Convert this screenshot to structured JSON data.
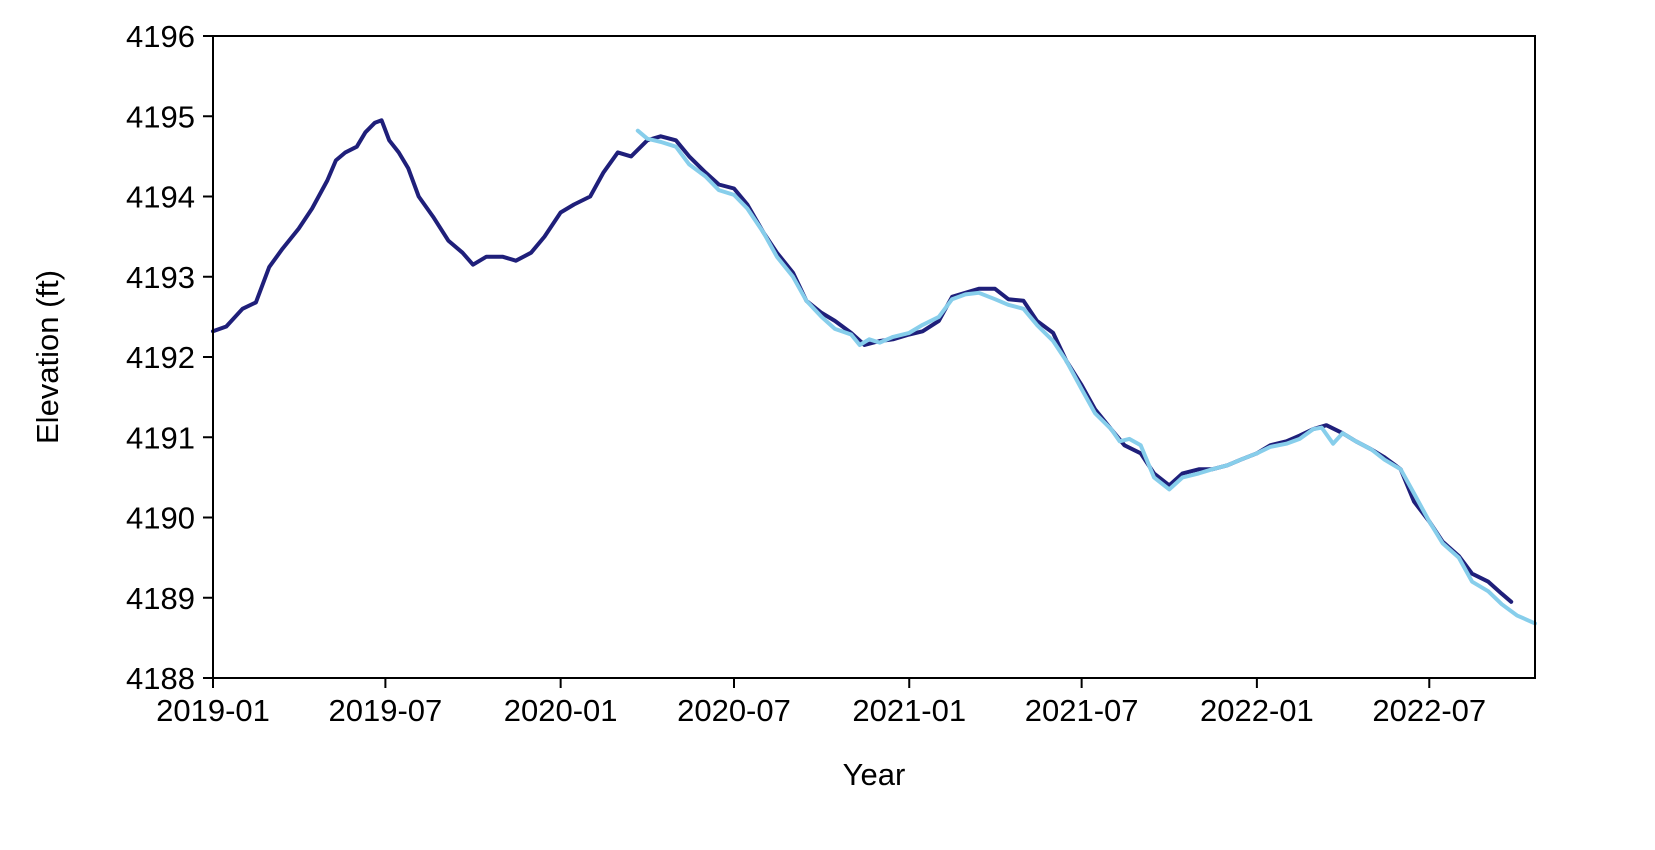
{
  "chart_data": {
    "type": "line",
    "xlabel": "Year",
    "ylabel": "Elevation (ft)",
    "x_axis_type": "date",
    "xlim": [
      "2019-01-01",
      "2022-10-20"
    ],
    "ylim": [
      4188,
      4196
    ],
    "x_ticks": [
      "2019-01",
      "2019-07",
      "2020-01",
      "2020-07",
      "2021-01",
      "2021-07",
      "2022-01",
      "2022-07"
    ],
    "y_ticks": [
      4188,
      4189,
      4190,
      4191,
      4192,
      4193,
      4194,
      4195,
      4196
    ],
    "grid": false,
    "legend": "none",
    "series": [
      {
        "color": "#1f1f7a",
        "points": [
          [
            "2019-01-01",
            4192.32
          ],
          [
            "2019-01-15",
            4192.38
          ],
          [
            "2019-02-01",
            4192.6
          ],
          [
            "2019-02-15",
            4192.68
          ],
          [
            "2019-03-01",
            4193.12
          ],
          [
            "2019-03-15",
            4193.35
          ],
          [
            "2019-04-01",
            4193.6
          ],
          [
            "2019-04-15",
            4193.85
          ],
          [
            "2019-05-01",
            4194.2
          ],
          [
            "2019-05-10",
            4194.45
          ],
          [
            "2019-05-20",
            4194.55
          ],
          [
            "2019-06-01",
            4194.62
          ],
          [
            "2019-06-10",
            4194.8
          ],
          [
            "2019-06-20",
            4194.92
          ],
          [
            "2019-06-27",
            4194.95
          ],
          [
            "2019-07-05",
            4194.7
          ],
          [
            "2019-07-15",
            4194.55
          ],
          [
            "2019-07-25",
            4194.35
          ],
          [
            "2019-08-05",
            4194.0
          ],
          [
            "2019-08-20",
            4193.75
          ],
          [
            "2019-09-05",
            4193.45
          ],
          [
            "2019-09-20",
            4193.3
          ],
          [
            "2019-10-01",
            4193.15
          ],
          [
            "2019-10-15",
            4193.25
          ],
          [
            "2019-11-01",
            4193.25
          ],
          [
            "2019-11-15",
            4193.2
          ],
          [
            "2019-12-01",
            4193.3
          ],
          [
            "2019-12-15",
            4193.5
          ],
          [
            "2020-01-01",
            4193.8
          ],
          [
            "2020-01-15",
            4193.9
          ],
          [
            "2020-02-01",
            4194.0
          ],
          [
            "2020-02-15",
            4194.3
          ],
          [
            "2020-03-01",
            4194.55
          ],
          [
            "2020-03-15",
            4194.5
          ],
          [
            "2020-04-01",
            4194.7
          ],
          [
            "2020-04-15",
            4194.75
          ],
          [
            "2020-05-01",
            4194.7
          ],
          [
            "2020-05-15",
            4194.5
          ],
          [
            "2020-06-01",
            4194.3
          ],
          [
            "2020-06-15",
            4194.15
          ],
          [
            "2020-07-01",
            4194.1
          ],
          [
            "2020-07-15",
            4193.9
          ],
          [
            "2020-08-01",
            4193.55
          ],
          [
            "2020-08-15",
            4193.3
          ],
          [
            "2020-09-01",
            4193.05
          ],
          [
            "2020-09-15",
            4192.7
          ],
          [
            "2020-10-01",
            4192.55
          ],
          [
            "2020-10-15",
            4192.45
          ],
          [
            "2020-11-01",
            4192.3
          ],
          [
            "2020-11-15",
            4192.15
          ],
          [
            "2020-12-01",
            4192.2
          ],
          [
            "2020-12-15",
            4192.22
          ],
          [
            "2021-01-01",
            4192.28
          ],
          [
            "2021-01-15",
            4192.32
          ],
          [
            "2021-02-01",
            4192.45
          ],
          [
            "2021-02-15",
            4192.75
          ],
          [
            "2021-03-01",
            4192.8
          ],
          [
            "2021-03-15",
            4192.85
          ],
          [
            "2021-04-01",
            4192.85
          ],
          [
            "2021-04-15",
            4192.72
          ],
          [
            "2021-05-01",
            4192.7
          ],
          [
            "2021-05-15",
            4192.45
          ],
          [
            "2021-06-01",
            4192.3
          ],
          [
            "2021-06-15",
            4191.95
          ],
          [
            "2021-07-01",
            4191.65
          ],
          [
            "2021-07-15",
            4191.35
          ],
          [
            "2021-08-01",
            4191.1
          ],
          [
            "2021-08-15",
            4190.9
          ],
          [
            "2021-09-01",
            4190.8
          ],
          [
            "2021-09-15",
            4190.55
          ],
          [
            "2021-10-01",
            4190.4
          ],
          [
            "2021-10-15",
            4190.55
          ],
          [
            "2021-11-01",
            4190.6
          ],
          [
            "2021-11-15",
            4190.6
          ],
          [
            "2021-12-01",
            4190.65
          ],
          [
            "2021-12-15",
            4190.72
          ],
          [
            "2022-01-01",
            4190.8
          ],
          [
            "2022-01-15",
            4190.9
          ],
          [
            "2022-02-01",
            4190.95
          ],
          [
            "2022-02-15",
            4191.02
          ],
          [
            "2022-03-01",
            4191.1
          ],
          [
            "2022-03-15",
            4191.15
          ],
          [
            "2022-04-01",
            4191.05
          ],
          [
            "2022-04-15",
            4190.95
          ],
          [
            "2022-05-01",
            4190.85
          ],
          [
            "2022-05-15",
            4190.75
          ],
          [
            "2022-06-01",
            4190.6
          ],
          [
            "2022-06-15",
            4190.2
          ],
          [
            "2022-07-01",
            4189.95
          ],
          [
            "2022-07-15",
            4189.7
          ],
          [
            "2022-08-01",
            4189.52
          ],
          [
            "2022-08-15",
            4189.3
          ],
          [
            "2022-09-01",
            4189.2
          ],
          [
            "2022-09-15",
            4189.05
          ],
          [
            "2022-09-25",
            4188.95
          ]
        ]
      },
      {
        "color": "#87ceeb",
        "points": [
          [
            "2020-03-22",
            4194.82
          ],
          [
            "2020-04-01",
            4194.72
          ],
          [
            "2020-04-15",
            4194.68
          ],
          [
            "2020-05-01",
            4194.62
          ],
          [
            "2020-05-15",
            4194.4
          ],
          [
            "2020-06-01",
            4194.25
          ],
          [
            "2020-06-15",
            4194.08
          ],
          [
            "2020-07-01",
            4194.02
          ],
          [
            "2020-07-15",
            4193.85
          ],
          [
            "2020-08-01",
            4193.55
          ],
          [
            "2020-08-15",
            4193.25
          ],
          [
            "2020-09-01",
            4193.0
          ],
          [
            "2020-09-15",
            4192.7
          ],
          [
            "2020-10-01",
            4192.5
          ],
          [
            "2020-10-15",
            4192.35
          ],
          [
            "2020-11-01",
            4192.28
          ],
          [
            "2020-11-10",
            4192.15
          ],
          [
            "2020-11-20",
            4192.22
          ],
          [
            "2020-12-01",
            4192.18
          ],
          [
            "2020-12-15",
            4192.25
          ],
          [
            "2021-01-01",
            4192.3
          ],
          [
            "2021-01-15",
            4192.4
          ],
          [
            "2021-02-01",
            4192.5
          ],
          [
            "2021-02-15",
            4192.72
          ],
          [
            "2021-03-01",
            4192.78
          ],
          [
            "2021-03-15",
            4192.8
          ],
          [
            "2021-04-01",
            4192.72
          ],
          [
            "2021-04-15",
            4192.65
          ],
          [
            "2021-05-01",
            4192.6
          ],
          [
            "2021-05-15",
            4192.4
          ],
          [
            "2021-06-01",
            4192.2
          ],
          [
            "2021-06-15",
            4191.95
          ],
          [
            "2021-07-01",
            4191.6
          ],
          [
            "2021-07-15",
            4191.3
          ],
          [
            "2021-08-01",
            4191.1
          ],
          [
            "2021-08-10",
            4190.95
          ],
          [
            "2021-08-20",
            4190.98
          ],
          [
            "2021-09-01",
            4190.9
          ],
          [
            "2021-09-15",
            4190.5
          ],
          [
            "2021-10-01",
            4190.35
          ],
          [
            "2021-10-15",
            4190.5
          ],
          [
            "2021-11-01",
            4190.55
          ],
          [
            "2021-11-15",
            4190.6
          ],
          [
            "2021-12-01",
            4190.65
          ],
          [
            "2021-12-15",
            4190.72
          ],
          [
            "2022-01-01",
            4190.8
          ],
          [
            "2022-01-15",
            4190.88
          ],
          [
            "2022-02-01",
            4190.92
          ],
          [
            "2022-02-15",
            4190.98
          ],
          [
            "2022-03-01",
            4191.1
          ],
          [
            "2022-03-10",
            4191.12
          ],
          [
            "2022-03-22",
            4190.92
          ],
          [
            "2022-04-01",
            4191.05
          ],
          [
            "2022-04-15",
            4190.95
          ],
          [
            "2022-05-01",
            4190.85
          ],
          [
            "2022-05-15",
            4190.72
          ],
          [
            "2022-06-01",
            4190.6
          ],
          [
            "2022-06-15",
            4190.3
          ],
          [
            "2022-07-01",
            4189.95
          ],
          [
            "2022-07-15",
            4189.68
          ],
          [
            "2022-08-01",
            4189.5
          ],
          [
            "2022-08-15",
            4189.2
          ],
          [
            "2022-09-01",
            4189.08
          ],
          [
            "2022-09-15",
            4188.92
          ],
          [
            "2022-10-01",
            4188.78
          ],
          [
            "2022-10-20",
            4188.68
          ]
        ]
      }
    ]
  }
}
